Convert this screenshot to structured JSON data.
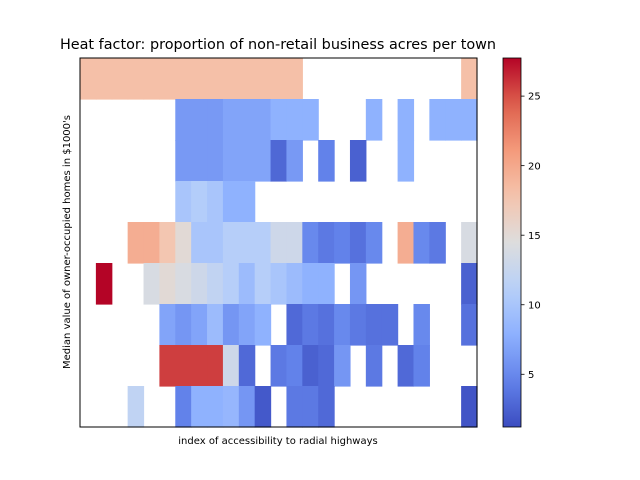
{
  "chart_data": {
    "type": "heatmap",
    "title": "Heat factor: proportion of non-retail business acres per town",
    "xlabel": "index of accessibility to radial highways",
    "ylabel": "Median value of owner-occupied homes in $1000's",
    "n_cols": 25,
    "n_rows": 9,
    "x_ticks": [],
    "y_ticks": [],
    "colormap": "coolwarm",
    "vmin": 1.21,
    "vmax": 27.74,
    "colorbar_ticks": [
      5,
      10,
      15,
      20,
      25
    ],
    "colorbar_labels": [
      "5",
      "10",
      "15",
      "20",
      "25"
    ],
    "rows": [
      [
        18.1,
        18.1,
        18.1,
        18.1,
        18.1,
        18.1,
        18.1,
        18.1,
        18.1,
        18.1,
        18.1,
        18.1,
        18.1,
        18.1,
        null,
        null,
        null,
        null,
        null,
        null,
        null,
        null,
        null,
        null,
        18.1
      ],
      [
        null,
        null,
        null,
        null,
        null,
        null,
        6.2,
        6.2,
        6.2,
        7.0,
        7.0,
        7.0,
        8.0,
        8.0,
        8.0,
        null,
        null,
        null,
        8.0,
        null,
        8.0,
        null,
        8.0,
        8.0,
        8.0
      ],
      [
        null,
        null,
        null,
        null,
        null,
        null,
        6.2,
        6.2,
        6.2,
        7.0,
        7.0,
        7.0,
        2.9,
        6.2,
        null,
        4.5,
        null,
        2.5,
        null,
        null,
        8.0,
        null,
        null,
        null,
        null
      ],
      [
        null,
        null,
        null,
        null,
        null,
        null,
        10.0,
        10.8,
        10.0,
        8.0,
        8.0,
        null,
        null,
        null,
        null,
        null,
        null,
        null,
        null,
        null,
        null,
        null,
        null,
        null,
        null
      ],
      [
        null,
        null,
        null,
        19.6,
        19.6,
        17.5,
        15.0,
        10.0,
        10.0,
        11.0,
        11.0,
        11.0,
        13.0,
        13.0,
        5.0,
        4.0,
        4.5,
        3.5,
        5.0,
        null,
        19.6,
        5.0,
        4.0,
        null,
        13.9
      ],
      [
        null,
        27.74,
        null,
        null,
        13.9,
        15.0,
        14.0,
        13.0,
        12.0,
        11.0,
        9.0,
        11.0,
        10.0,
        9.0,
        8.0,
        8.0,
        null,
        6.0,
        null,
        null,
        null,
        null,
        null,
        null,
        2.5
      ],
      [
        null,
        null,
        null,
        null,
        null,
        7.0,
        6.0,
        7.0,
        9.0,
        6.0,
        7.0,
        8.0,
        null,
        3.0,
        4.0,
        3.5,
        5.0,
        4.0,
        3.5,
        3.5,
        null,
        5.0,
        null,
        null,
        3.5
      ],
      [
        null,
        null,
        null,
        null,
        null,
        25.65,
        25.65,
        25.65,
        25.65,
        13.0,
        3.0,
        null,
        4.0,
        4.5,
        2.5,
        3.0,
        6.0,
        null,
        4.0,
        null,
        3.0,
        4.5,
        null,
        null,
        null
      ],
      [
        null,
        null,
        null,
        11.9,
        null,
        null,
        4.5,
        8.0,
        8.0,
        8.5,
        6.0,
        2.0,
        null,
        4.0,
        4.0,
        3.0,
        null,
        null,
        null,
        null,
        null,
        null,
        null,
        null,
        1.7
      ]
    ]
  }
}
